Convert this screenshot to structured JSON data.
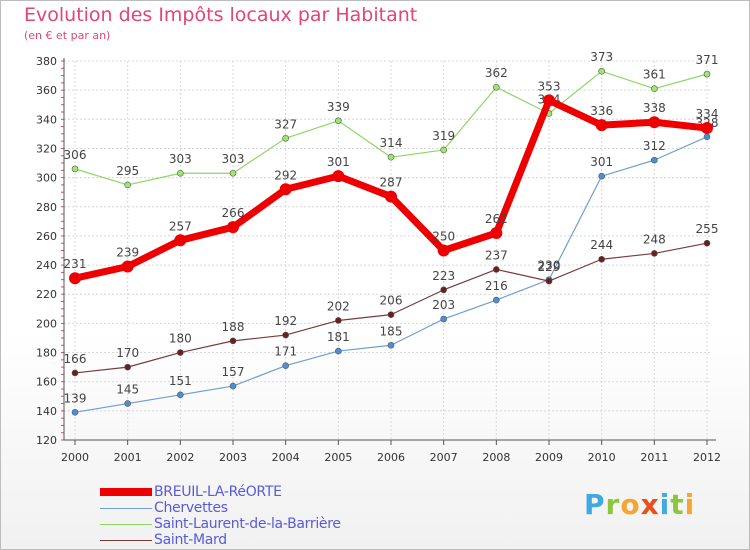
{
  "title": "Evolution des Impôts locaux par Habitant",
  "subtitle": "(en € et par an)",
  "logo": {
    "letters": [
      "P",
      "r",
      "o",
      "x",
      "i",
      "t",
      "i"
    ],
    "colors": [
      "#3fa9e0",
      "#8cc63f",
      "#f7a531",
      "#e94e1b",
      "#3fa9e0",
      "#8cc63f",
      "#f7a531"
    ]
  },
  "chart_data": {
    "type": "line",
    "x": [
      "2000",
      "2001",
      "2002",
      "2003",
      "2004",
      "2005",
      "2006",
      "2007",
      "2008",
      "2009",
      "2010",
      "2011",
      "2012"
    ],
    "ylim": [
      120,
      380
    ],
    "yticks": [
      "120",
      "140",
      "160",
      "180",
      "200",
      "220",
      "240",
      "260",
      "280",
      "300",
      "320",
      "340",
      "360",
      "380"
    ],
    "grid": true,
    "legend_position": "bottom-left",
    "series": [
      {
        "name": "Saint-Laurent-de-la-Barrière",
        "color": "#8cd864",
        "marker": "#9ee76e",
        "width": 1.2,
        "values": [
          306,
          295,
          303,
          303,
          327,
          339,
          314,
          319,
          362,
          344,
          373,
          361,
          371
        ],
        "labels": [
          "306",
          "295",
          "303",
          "303",
          "327",
          "339",
          "314",
          "319",
          "362",
          "344",
          "373",
          "361",
          "371"
        ]
      },
      {
        "name": "Chervettes",
        "color": "#6f9ed0",
        "marker": "#4d8fd6",
        "width": 1.2,
        "values": [
          139,
          145,
          151,
          157,
          171,
          181,
          185,
          203,
          216,
          230,
          301,
          312,
          328
        ],
        "labels": [
          "139",
          "145",
          "151",
          "157",
          "171",
          "181",
          "185",
          "203",
          "216",
          "230",
          "301",
          "312",
          "328"
        ]
      },
      {
        "name": "Saint-Mard",
        "color": "#7a3a3a",
        "marker": "#6b1f1f",
        "width": 1.2,
        "values": [
          166,
          170,
          180,
          188,
          192,
          202,
          206,
          223,
          237,
          229,
          244,
          248,
          255
        ],
        "labels": [
          "166",
          "170",
          "180",
          "188",
          "192",
          "202",
          "206",
          "223",
          "237",
          "229",
          "244",
          "248",
          "255"
        ]
      },
      {
        "name": "BREUIL-LA-RéORTE",
        "color": "#ee0000",
        "marker": "#ee0000",
        "width": 7,
        "values": [
          231,
          239,
          257,
          266,
          292,
          301,
          287,
          250,
          262,
          353,
          336,
          338,
          334
        ],
        "labels": [
          "231",
          "239",
          "257",
          "266",
          "292",
          "301",
          "287",
          "250",
          "262",
          "353",
          "336",
          "338",
          "334"
        ]
      }
    ],
    "legend": [
      {
        "label": "BREUIL-LA-RéORTE",
        "color": "#ee0000",
        "thickness": 8
      },
      {
        "label": "Chervettes",
        "color": "#6f9ed0",
        "thickness": 1
      },
      {
        "label": "Saint-Laurent-de-la-Barrière",
        "color": "#8cd864",
        "thickness": 1
      },
      {
        "label": "Saint-Mard",
        "color": "#7a3a3a",
        "thickness": 1
      }
    ]
  }
}
